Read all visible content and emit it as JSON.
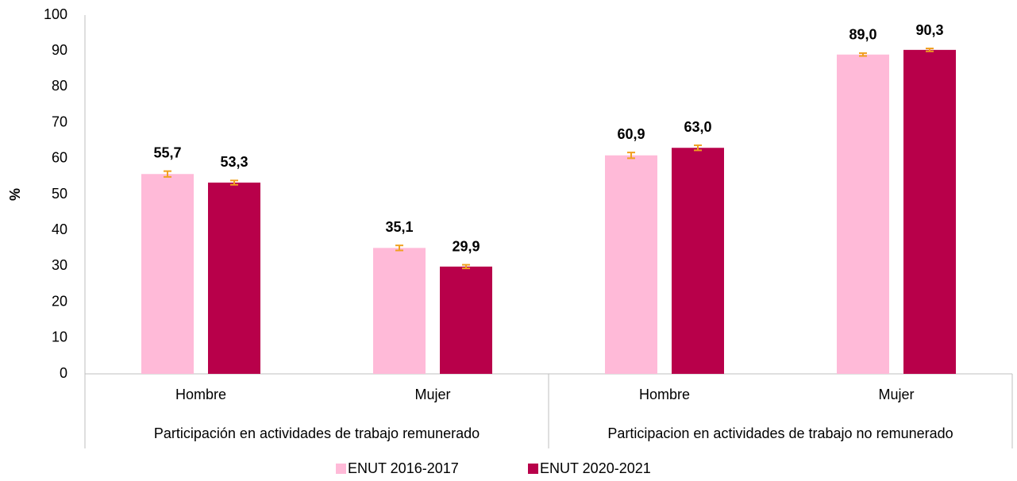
{
  "chart_data": {
    "type": "bar",
    "ylabel": "%",
    "groups": [
      "Participación en actividades de trabajo remunerado",
      "Participacion en actividades de trabajo no remunerado"
    ],
    "categories": [
      "Hombre",
      "Mujer",
      "Hombre",
      "Mujer"
    ],
    "series": [
      {
        "name": "ENUT 2016-2017",
        "color": "#ffbad8",
        "values": [
          55.7,
          35.1,
          60.9,
          89.0
        ],
        "value_labels": [
          "55,7",
          "35,1",
          "60,9",
          "89,0"
        ],
        "errors": [
          0.8,
          0.7,
          0.8,
          0.4
        ]
      },
      {
        "name": "ENUT 2020-2021",
        "color": "#b8004a",
        "values": [
          53.3,
          29.9,
          63.0,
          90.3
        ],
        "value_labels": [
          "53,3",
          "29,9",
          "63,0",
          "90,3"
        ],
        "errors": [
          0.6,
          0.5,
          0.7,
          0.4
        ]
      }
    ],
    "error_color": "#f0a020",
    "ylim": [
      0,
      100
    ],
    "yticks": [
      0,
      10,
      20,
      30,
      40,
      50,
      60,
      70,
      80,
      90,
      100
    ],
    "grid": false,
    "legend": "bottom"
  }
}
